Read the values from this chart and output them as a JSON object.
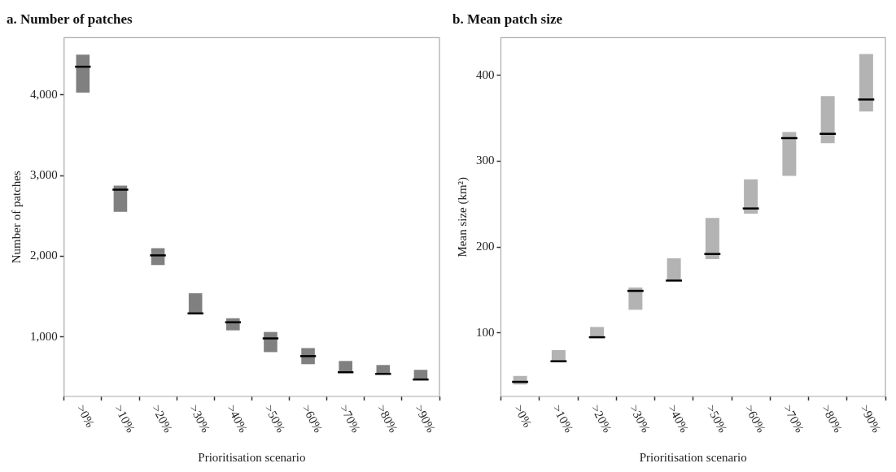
{
  "chart_data": [
    {
      "type": "box",
      "title": "a. Number of patches",
      "xlabel": "Prioritisation scenario",
      "ylabel": "Number of patches",
      "categories": [
        ">0%",
        ">10%",
        ">20%",
        ">30%",
        ">40%",
        ">50%",
        ">60%",
        ">70%",
        ">80%",
        ">90%"
      ],
      "color": "#808080",
      "ylim": [
        260,
        4710
      ],
      "yticks": [
        {
          "value": 1000,
          "label": "1,000"
        },
        {
          "value": 2000,
          "label": "2,000"
        },
        {
          "value": 3000,
          "label": "3,000"
        },
        {
          "value": 4000,
          "label": "4,000"
        }
      ],
      "grid": false,
      "legend": false,
      "boxes": [
        {
          "low": 4030,
          "q1": 4030,
          "median": 4350,
          "q3": 4500,
          "high": 4500
        },
        {
          "low": 2550,
          "q1": 2550,
          "median": 2825,
          "q3": 2875,
          "high": 2875
        },
        {
          "low": 1890,
          "q1": 1890,
          "median": 2010,
          "q3": 2100,
          "high": 2100
        },
        {
          "low": 1290,
          "q1": 1290,
          "median": 1290,
          "q3": 1540,
          "high": 1540
        },
        {
          "low": 1080,
          "q1": 1080,
          "median": 1180,
          "q3": 1230,
          "high": 1230
        },
        {
          "low": 810,
          "q1": 810,
          "median": 980,
          "q3": 1060,
          "high": 1060
        },
        {
          "low": 660,
          "q1": 660,
          "median": 760,
          "q3": 860,
          "high": 860
        },
        {
          "low": 560,
          "q1": 560,
          "median": 560,
          "q3": 700,
          "high": 700
        },
        {
          "low": 540,
          "q1": 540,
          "median": 540,
          "q3": 650,
          "high": 650
        },
        {
          "low": 470,
          "q1": 470,
          "median": 470,
          "q3": 590,
          "high": 590
        }
      ]
    },
    {
      "type": "box",
      "title": "b. Mean patch size",
      "xlabel": "Prioritisation scenario",
      "ylabel": "Mean size (km²)",
      "categories": [
        ">0%",
        ">10%",
        ">20%",
        ">30%",
        ">40%",
        ">50%",
        ">60%",
        ">70%",
        ">80%",
        ">90%"
      ],
      "color": "#b3b3b3",
      "ylim": [
        26,
        444
      ],
      "yticks": [
        100,
        200,
        300,
        400
      ],
      "grid": false,
      "legend": false,
      "boxes": [
        {
          "low": 40,
          "q1": 40,
          "median": 43,
          "q3": 50,
          "high": 50
        },
        {
          "low": 67,
          "q1": 67,
          "median": 67,
          "q3": 80,
          "high": 80
        },
        {
          "low": 94,
          "q1": 94,
          "median": 95,
          "q3": 107,
          "high": 107
        },
        {
          "low": 127,
          "q1": 127,
          "median": 149,
          "q3": 153,
          "high": 153
        },
        {
          "low": 161,
          "q1": 161,
          "median": 161,
          "q3": 187,
          "high": 187
        },
        {
          "low": 186,
          "q1": 186,
          "median": 192,
          "q3": 234,
          "high": 234
        },
        {
          "low": 239,
          "q1": 239,
          "median": 245,
          "q3": 279,
          "high": 279
        },
        {
          "low": 283,
          "q1": 283,
          "median": 327,
          "q3": 334,
          "high": 334
        },
        {
          "low": 321,
          "q1": 321,
          "median": 332,
          "q3": 376,
          "high": 376
        },
        {
          "low": 358,
          "q1": 358,
          "median": 372,
          "q3": 425,
          "high": 425
        }
      ]
    }
  ]
}
